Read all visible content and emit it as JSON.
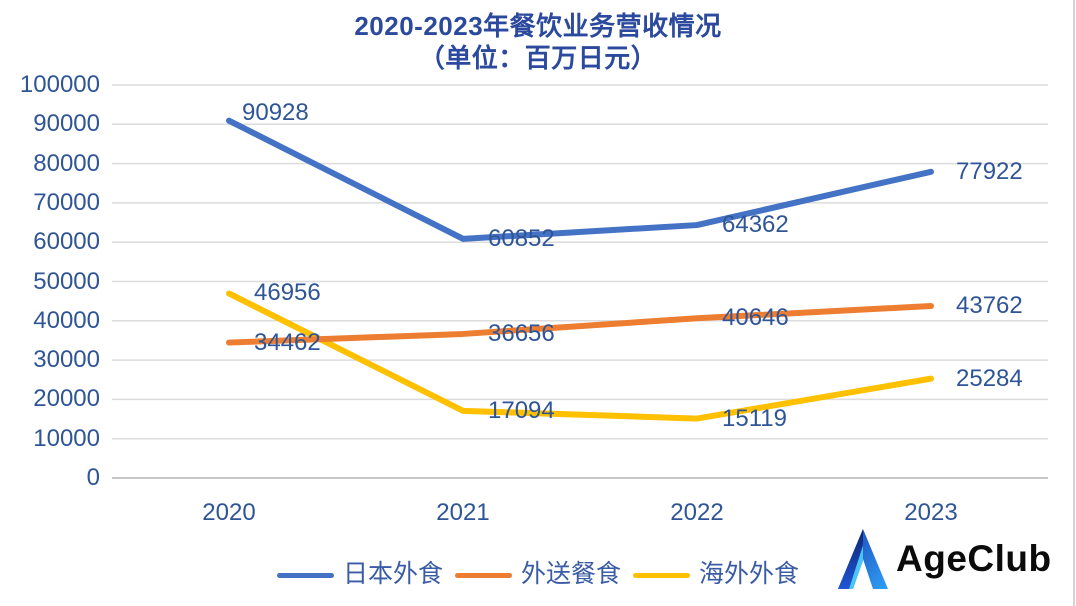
{
  "title": {
    "line1": "2020-2023年餐饮业务营收情况",
    "line2": "（单位：百万日元）"
  },
  "chart_data": {
    "type": "line",
    "x": [
      "2020",
      "2021",
      "2022",
      "2023"
    ],
    "series": [
      {
        "name": "日本外食",
        "color": "#4472C4",
        "values": [
          90928,
          60852,
          64362,
          77922
        ]
      },
      {
        "name": "外送餐食",
        "color": "#ED7D31",
        "values": [
          34462,
          36656,
          40646,
          43762
        ]
      },
      {
        "name": "海外外食",
        "color": "#FFC000",
        "values": [
          46956,
          17094,
          15119,
          25284
        ]
      }
    ],
    "ylim": [
      0,
      100000
    ],
    "ytick_step": 10000,
    "yticks": [
      0,
      10000,
      20000,
      30000,
      40000,
      50000,
      60000,
      70000,
      80000,
      90000,
      100000
    ],
    "grid": "horizontal-gridlines",
    "legend_position": "bottom",
    "data_labels_shown": true
  },
  "colors": {
    "title_text": "#2B4A9E",
    "axis_text": "#2F5597",
    "data_label_text": "#2F5597",
    "legend_text": "#3A5BA5",
    "gridline": "#DCDCDC",
    "axis_line": "#C6C6C6"
  },
  "logo": {
    "text": "AgeClub",
    "icon": "ageclub-mountain-icon"
  }
}
